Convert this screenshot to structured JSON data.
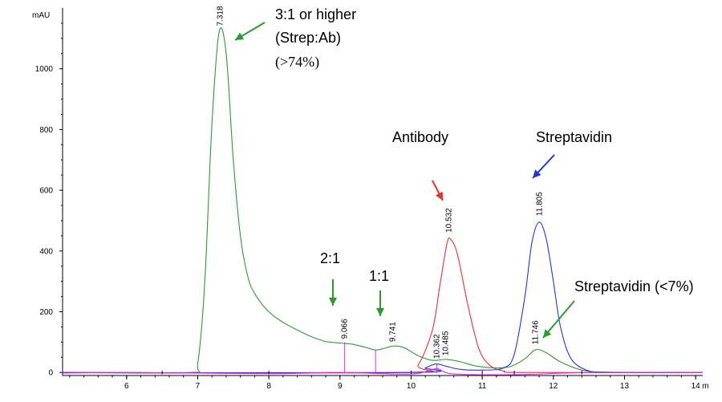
{
  "chart_data": {
    "type": "line",
    "ylabel": "mAU",
    "xlabel": "",
    "x_unit_truncated": "m",
    "xlim": [
      5.1,
      14.1
    ],
    "ylim": [
      -10,
      1200
    ],
    "x_ticks": [
      6,
      7,
      8,
      9,
      10,
      11,
      12,
      13,
      14
    ],
    "y_ticks": [
      0,
      200,
      400,
      600,
      800,
      1000
    ],
    "grid": false,
    "legend": "none",
    "series": [
      {
        "color": "#2e9a2e",
        "points": [
          [
            5.1,
            0
          ],
          [
            6.9,
            0
          ],
          [
            7.0,
            30
          ],
          [
            7.1,
            300
          ],
          [
            7.2,
            820
          ],
          [
            7.3,
            1120
          ],
          [
            7.4,
            1050
          ],
          [
            7.5,
            700
          ],
          [
            7.6,
            450
          ],
          [
            7.7,
            320
          ],
          [
            7.8,
            260
          ],
          [
            8.0,
            200
          ],
          [
            8.2,
            165
          ],
          [
            8.4,
            140
          ],
          [
            8.6,
            118
          ],
          [
            8.8,
            102
          ],
          [
            9.0,
            97
          ],
          [
            9.2,
            92
          ],
          [
            9.4,
            80
          ],
          [
            9.5,
            74
          ],
          [
            9.6,
            78
          ],
          [
            9.75,
            87
          ],
          [
            9.9,
            82
          ],
          [
            10.1,
            55
          ],
          [
            10.3,
            40
          ],
          [
            10.5,
            43
          ],
          [
            10.7,
            35
          ],
          [
            10.9,
            22
          ],
          [
            11.2,
            15
          ],
          [
            11.4,
            20
          ],
          [
            11.6,
            45
          ],
          [
            11.75,
            75
          ],
          [
            11.9,
            65
          ],
          [
            12.1,
            35
          ],
          [
            12.4,
            8
          ],
          [
            12.8,
            1
          ],
          [
            14.1,
            0
          ]
        ]
      },
      {
        "color": "#e83030",
        "points": [
          [
            5.1,
            0
          ],
          [
            9.9,
            0
          ],
          [
            10.1,
            25
          ],
          [
            10.3,
            140
          ],
          [
            10.4,
            280
          ],
          [
            10.5,
            420
          ],
          [
            10.55,
            440
          ],
          [
            10.65,
            390
          ],
          [
            10.8,
            220
          ],
          [
            10.95,
            80
          ],
          [
            11.1,
            25
          ],
          [
            11.3,
            5
          ],
          [
            11.6,
            0
          ],
          [
            14.1,
            0
          ]
        ]
      },
      {
        "color": "#2233dd",
        "points": [
          [
            5.1,
            0
          ],
          [
            10.0,
            0
          ],
          [
            10.2,
            15
          ],
          [
            10.35,
            28
          ],
          [
            10.5,
            20
          ],
          [
            10.7,
            10
          ],
          [
            11.0,
            8
          ],
          [
            11.3,
            15
          ],
          [
            11.45,
            60
          ],
          [
            11.6,
            250
          ],
          [
            11.7,
            430
          ],
          [
            11.8,
            495
          ],
          [
            11.9,
            440
          ],
          [
            12.0,
            300
          ],
          [
            12.1,
            150
          ],
          [
            12.25,
            45
          ],
          [
            12.5,
            5
          ],
          [
            12.8,
            0
          ],
          [
            14.1,
            0
          ]
        ]
      },
      {
        "color": "#ee22ee",
        "points": [
          [
            5.1,
            -2
          ],
          [
            6.0,
            0
          ],
          [
            8.0,
            -4
          ],
          [
            9.0,
            0
          ],
          [
            10.0,
            -5
          ],
          [
            10.35,
            12
          ],
          [
            10.6,
            -5
          ],
          [
            11.5,
            -7
          ],
          [
            12.5,
            0
          ],
          [
            14.1,
            0
          ]
        ]
      }
    ],
    "peak_labels": [
      {
        "text": "7.318",
        "x": 7.318,
        "y": 1130
      },
      {
        "text": "9.066",
        "x": 9.066,
        "y": 100
      },
      {
        "text": "9.741",
        "x": 9.741,
        "y": 90
      },
      {
        "text": "10.362",
        "x": 10.362,
        "y": 35
      },
      {
        "text": "10.485",
        "x": 10.485,
        "y": 45
      },
      {
        "text": "10.532",
        "x": 10.532,
        "y": 450
      },
      {
        "text": "11.805",
        "x": 11.805,
        "y": 505
      },
      {
        "text": "11.746",
        "x": 11.746,
        "y": 82
      }
    ],
    "annotations": [
      {
        "lines": [
          "3:1 or higher",
          "(Strep:Ab)"
        ],
        "line3": "(>74%)",
        "color": "#2e9a2e"
      },
      {
        "lines": [
          "2:1"
        ],
        "color": "#2e9a2e"
      },
      {
        "lines": [
          "1:1"
        ],
        "color": "#2e9a2e"
      },
      {
        "lines": [
          "Antibody"
        ],
        "color": "#e83030"
      },
      {
        "lines": [
          "Streptavidin"
        ],
        "color": "#2233dd"
      },
      {
        "lines": [
          "Streptavidin (<7%)"
        ],
        "color": "#2e9a2e"
      }
    ]
  }
}
